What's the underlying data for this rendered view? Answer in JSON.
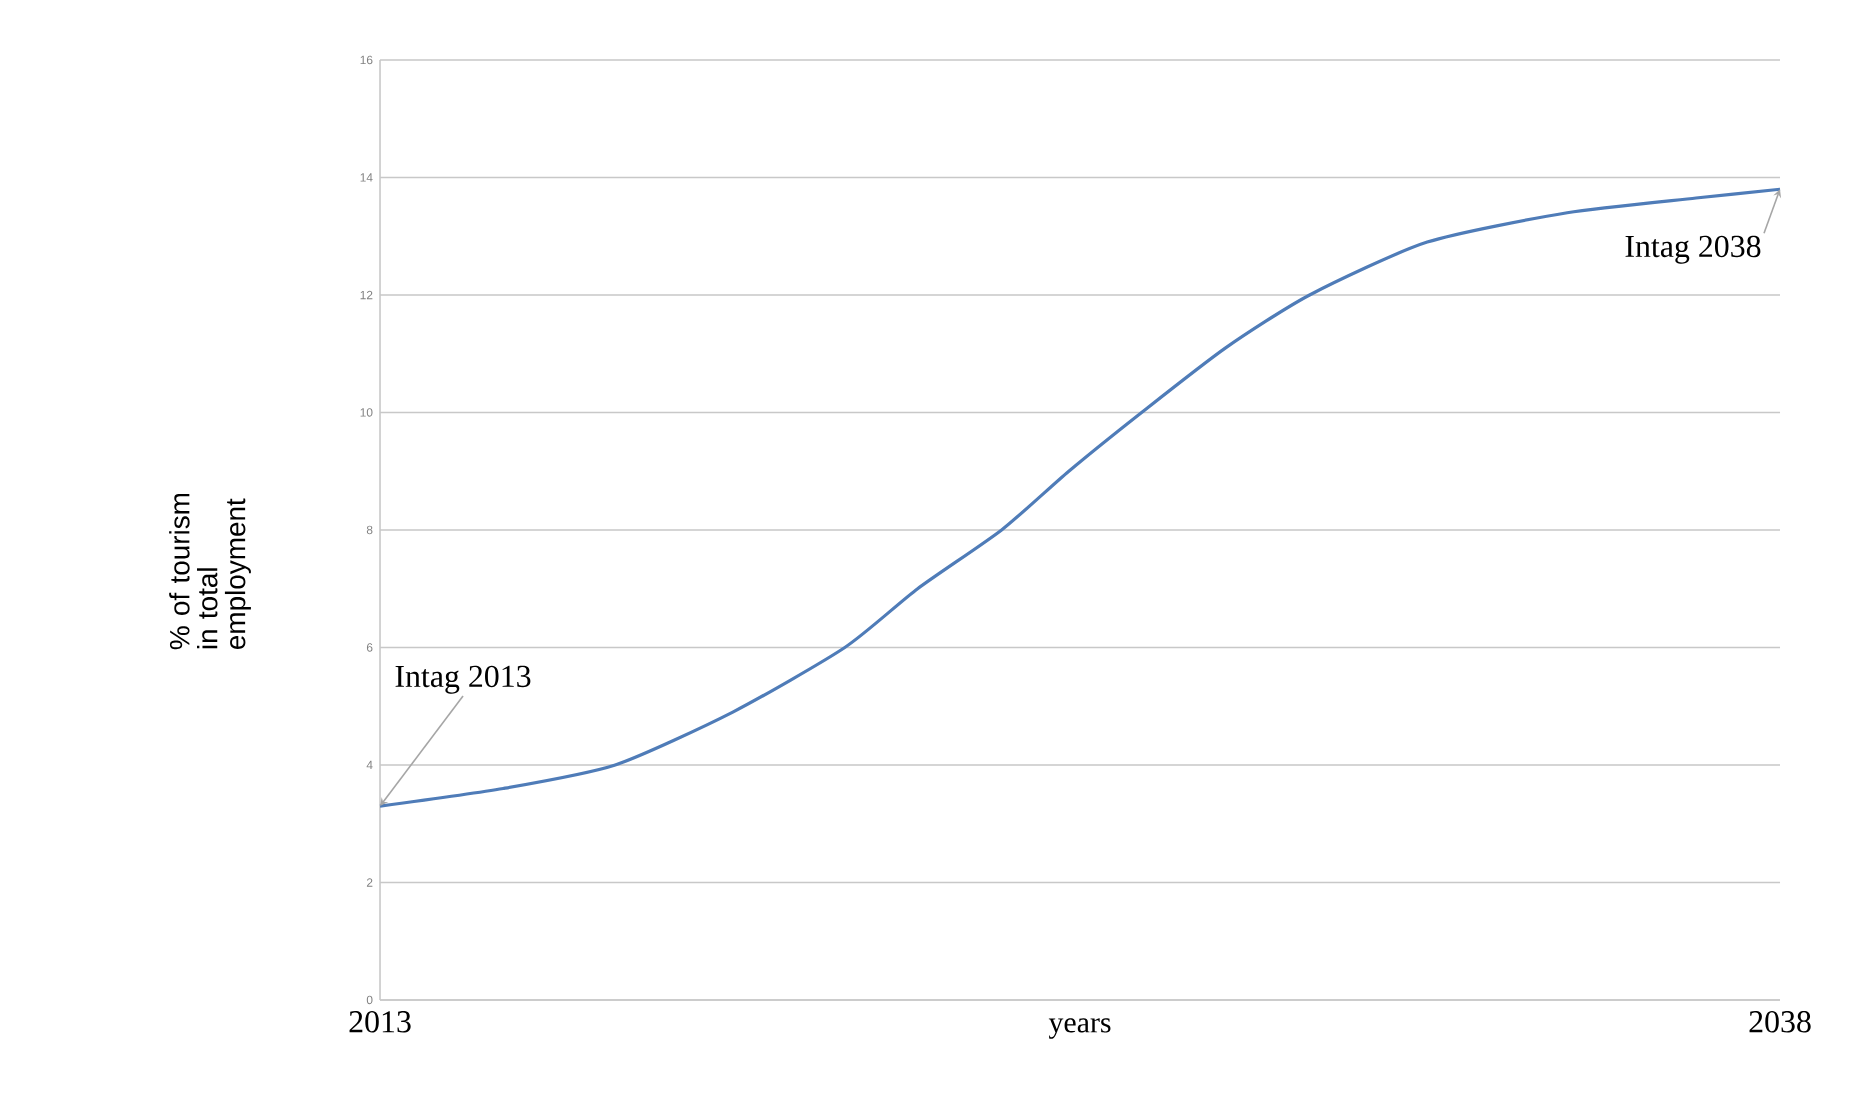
{
  "chart_data": {
    "type": "line",
    "xlabel": "years",
    "ylabel": "% of tourism in total employment",
    "x": [
      2013,
      2015.2,
      2017.2,
      2019.3,
      2021.3,
      2022.6,
      2024.1,
      2025.3,
      2026.6,
      2028.1,
      2029.6,
      2031.7,
      2034.2,
      2036.5,
      2038
    ],
    "series": [
      {
        "color": "#4f7cb8",
        "values": [
          3.3,
          3.6,
          4.0,
          4.9,
          6.0,
          7.0,
          8.0,
          9.0,
          10.0,
          11.1,
          12.0,
          12.9,
          13.4,
          13.65,
          13.8
        ]
      }
    ],
    "xlim": [
      2013,
      2038
    ],
    "xticks": [
      2013,
      2038
    ],
    "ylim": [
      0,
      16
    ],
    "yticks": [
      0,
      2,
      4,
      6,
      8,
      10,
      12,
      14,
      16
    ],
    "grid": "y",
    "marker": "none",
    "line_style": "solid",
    "annotations": [
      {
        "text": "Intag 2013",
        "x": 2013,
        "y": 3.3
      },
      {
        "text": "Intag 2038",
        "x": 2038,
        "y": 13.8
      }
    ]
  }
}
